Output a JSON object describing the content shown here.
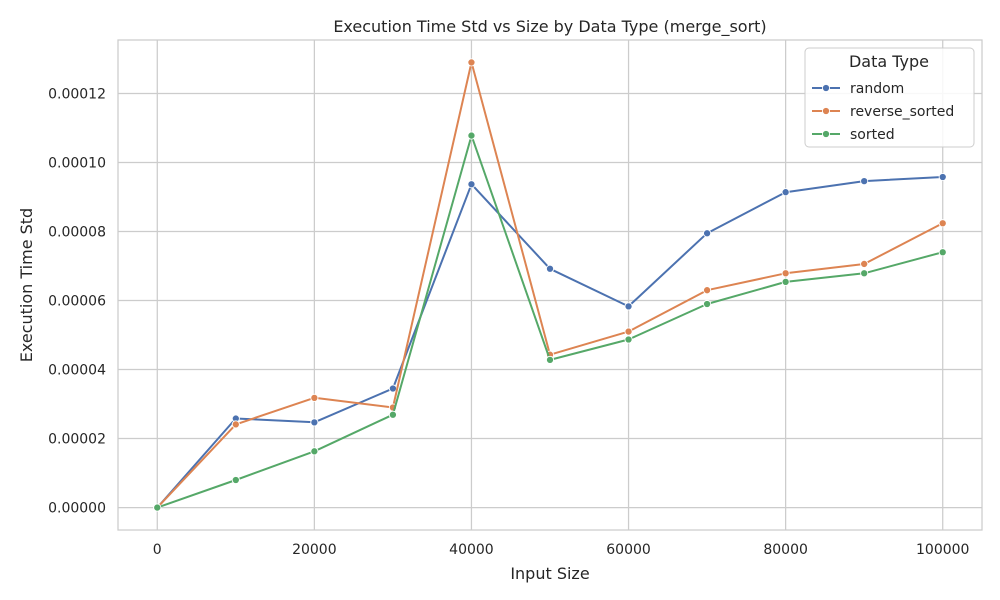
{
  "chart_data": {
    "type": "line",
    "title": "Execution Time Std vs Size by Data Type (merge_sort)",
    "xlabel": "Input Size",
    "ylabel": "Execution Time Std",
    "x": [
      0,
      10000,
      20000,
      30000,
      40000,
      50000,
      60000,
      70000,
      80000,
      90000,
      100000
    ],
    "xlim": [
      -5000,
      105000
    ],
    "ylim": [
      -6.5e-06,
      0.0001355
    ],
    "xticks": [
      "0",
      "20000",
      "40000",
      "60000",
      "80000",
      "100000"
    ],
    "xtick_values": [
      0,
      20000,
      40000,
      60000,
      80000,
      100000
    ],
    "yticks": [
      "0.00000",
      "0.00002",
      "0.00004",
      "0.00006",
      "0.00008",
      "0.00010",
      "0.00012"
    ],
    "ytick_values": [
      0,
      2e-05,
      4e-05,
      6e-05,
      8e-05,
      0.0001,
      0.00012
    ],
    "grid": true,
    "legend": {
      "title": "Data Type",
      "placement": "top-right"
    },
    "series": [
      {
        "name": "random",
        "color": "#4c72b0",
        "values": [
          0.0,
          2.58e-05,
          2.47e-05,
          3.45e-05,
          9.37e-05,
          6.92e-05,
          5.83e-05,
          7.95e-05,
          9.14e-05,
          9.46e-05,
          9.58e-05
        ]
      },
      {
        "name": "reverse_sorted",
        "color": "#dd8452",
        "values": [
          0.0,
          2.41e-05,
          3.18e-05,
          2.9e-05,
          0.000129,
          4.43e-05,
          5.1e-05,
          6.3e-05,
          6.79e-05,
          7.06e-05,
          8.24e-05
        ]
      },
      {
        "name": "sorted",
        "color": "#55a868",
        "values": [
          0.0,
          8e-06,
          1.63e-05,
          2.69e-05,
          0.0001078,
          4.28e-05,
          4.87e-05,
          5.9e-05,
          6.54e-05,
          6.79e-05,
          7.4e-05
        ]
      }
    ]
  }
}
